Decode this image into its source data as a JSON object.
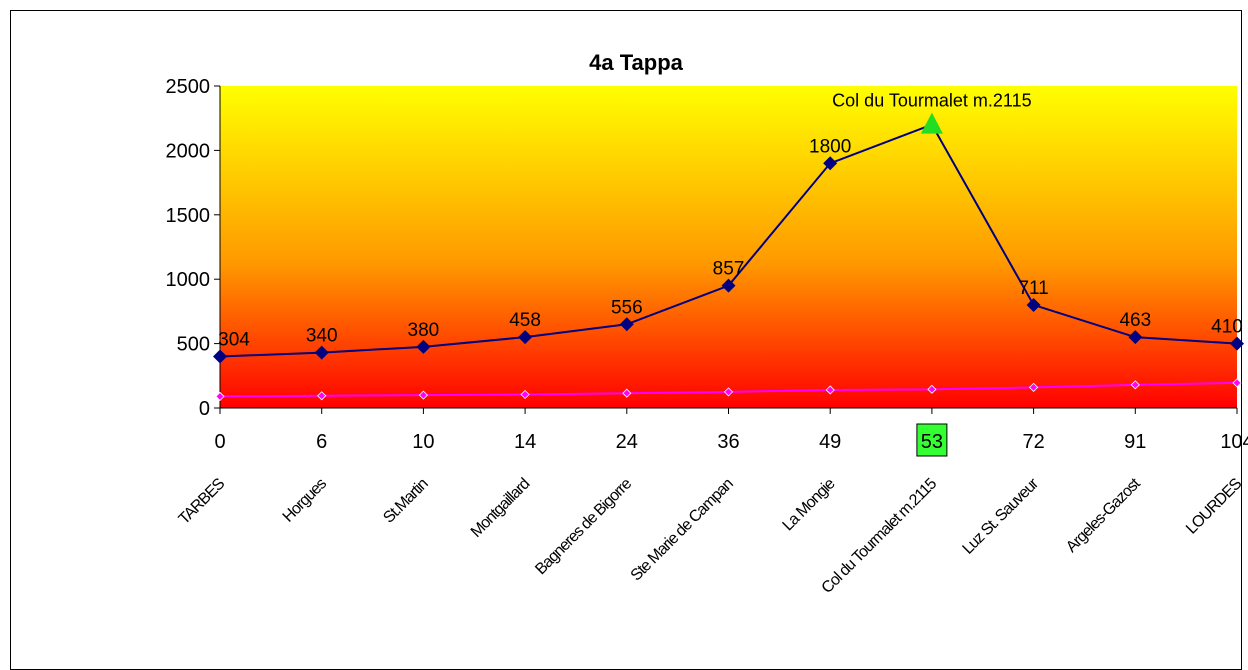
{
  "chart_data": {
    "type": "line",
    "title": "4a Tappa",
    "ylim": [
      0,
      2500
    ],
    "yticks": [
      0,
      500,
      1000,
      1500,
      2000,
      2500
    ],
    "categories": [
      "0",
      "6",
      "10",
      "14",
      "24",
      "36",
      "49",
      "53",
      "72",
      "91",
      "104"
    ],
    "highlight_category": "53",
    "place_names": [
      "TARBES",
      "Horgues",
      "St.Martin",
      "Montgaillard",
      "Bagneres de Bigorre",
      "Ste Marie de Campan",
      "La Mongie",
      "Col du Tourmalet m.2115",
      "Luz St. Sauveur",
      "Argeles-Gazost",
      "LOURDES"
    ],
    "series": [
      {
        "values": [
          400,
          430,
          475,
          550,
          650,
          950,
          1900,
          2200,
          800,
          550,
          500
        ],
        "data_labels": [
          "304",
          "340",
          "380",
          "458",
          "556",
          "857",
          "1800",
          "",
          "711",
          "463",
          "410"
        ],
        "color": "#000080",
        "marker": "diamond"
      },
      {
        "values": [
          90,
          95,
          100,
          105,
          115,
          125,
          140,
          145,
          160,
          180,
          195
        ],
        "color": "#ff00ff",
        "marker": "small-diamond"
      }
    ],
    "summit": {
      "category": "53",
      "value": 2200,
      "label": "Col du Tourmalet m.2115",
      "color": "#22dd22"
    },
    "colors": {
      "plot_top": "#ffff00",
      "plot_mid": "#ff9900",
      "plot_bottom": "#ff0000",
      "highlight_box": "#33ff33"
    }
  }
}
